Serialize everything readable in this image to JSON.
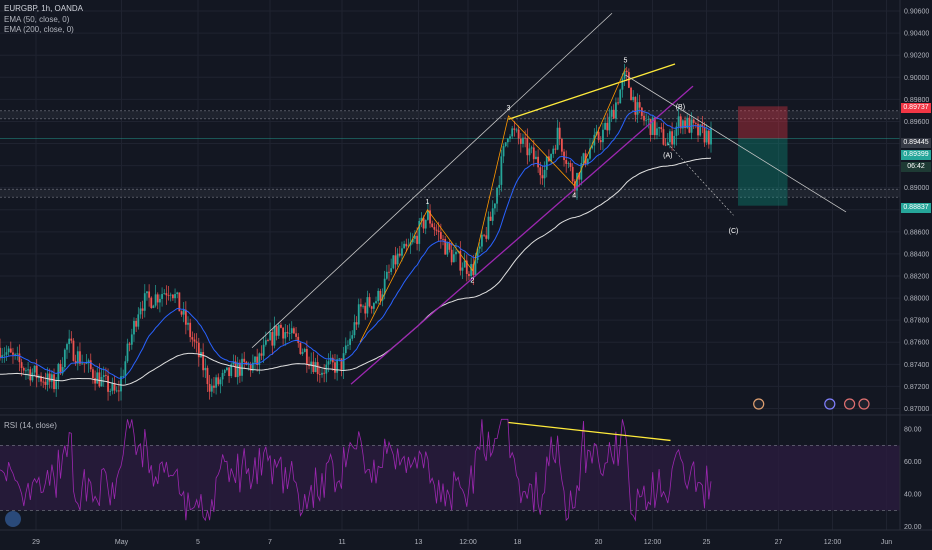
{
  "legend": {
    "symbol": "EURGBP, 1h, OANDA",
    "ema50": "EMA (50, close, 0)",
    "ema200": "EMA (200, close, 0)",
    "rsi": "RSI (14, close)"
  },
  "price_tags": {
    "stop": "0.89737",
    "last": "0.89399",
    "countdown": "06:42",
    "target": "0.88837",
    "entry": "0.89445"
  },
  "colors": {
    "background": "#131722",
    "up": "#26a69a",
    "down": "#ef5350",
    "ema50": "#2962ff",
    "ema200": "#e0e0e0",
    "channel": "#9c27b0",
    "trendline": "#ffeb3b",
    "wave": "#ff9800",
    "rsi_line": "#9c27b0",
    "rsi_fill": "#2b1b3f"
  },
  "chart_data": [
    {
      "type": "candlestick",
      "instrument": "EURGBP",
      "timeframe": "1h",
      "ylim": [
        0.8695,
        0.907
      ],
      "y_ticks": [
        "0.90600",
        "0.90400",
        "0.90200",
        "0.90000",
        "0.89800",
        "0.89600",
        "0.89400",
        "0.89200",
        "0.89000",
        "0.88800",
        "0.88600",
        "0.88400",
        "0.88200",
        "0.88000",
        "0.87800",
        "0.87600",
        "0.87400",
        "0.87200",
        "0.87000"
      ],
      "x_ticks": [
        "29",
        "May",
        "5",
        "7",
        "11",
        "13",
        "12:00",
        "18",
        "20",
        "12:00",
        "25",
        "27",
        "12:00",
        "Jun"
      ],
      "wave_labels": [
        "1",
        "2",
        "3",
        "4",
        "5",
        "(A)",
        "(B)",
        "(C)"
      ],
      "wave_points": [
        {
          "label": "1",
          "t": 0.475,
          "price": 0.888
        },
        {
          "label": "2",
          "t": 0.525,
          "price": 0.8825
        },
        {
          "label": "3",
          "t": 0.565,
          "price": 0.8965
        },
        {
          "label": "4",
          "t": 0.638,
          "price": 0.8902
        },
        {
          "label": "5",
          "t": 0.695,
          "price": 0.9008
        },
        {
          "label": "(A)",
          "t": 0.742,
          "price": 0.8938
        },
        {
          "label": "(B)",
          "t": 0.756,
          "price": 0.8966
        },
        {
          "label": "(C)",
          "t": 0.815,
          "price": 0.887
        }
      ],
      "horizontal_levels": [
        0.8966,
        0.8895
      ],
      "position": {
        "entry": 0.89445,
        "stop": 0.89737,
        "target": 0.88837
      }
    },
    {
      "type": "line",
      "name": "RSI (14, close)",
      "ylim": [
        18,
        88
      ],
      "y_ticks": [
        "80.00",
        "60.00",
        "40.00",
        "20.00"
      ],
      "bands": [
        70,
        30
      ]
    }
  ]
}
